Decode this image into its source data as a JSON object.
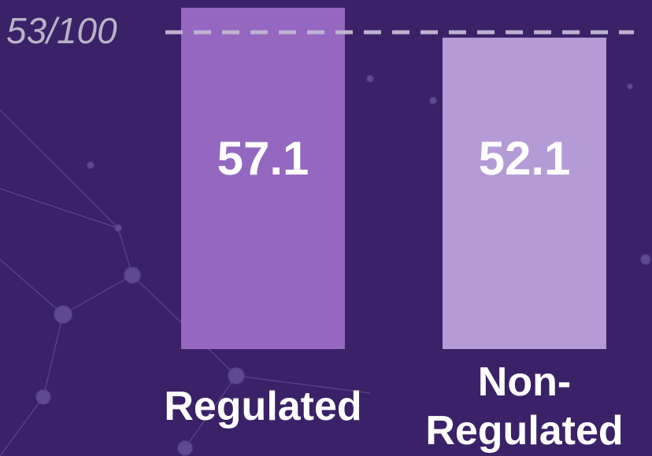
{
  "chart_data": {
    "type": "bar",
    "categories": [
      "Regulated",
      "Non-Regulated"
    ],
    "values": [
      57.1,
      52.1
    ],
    "colors": [
      "#9468c0",
      "#b59bd6"
    ],
    "ylim": [
      0,
      58
    ],
    "reference_line": {
      "value": 53,
      "label": "53/100"
    }
  }
}
